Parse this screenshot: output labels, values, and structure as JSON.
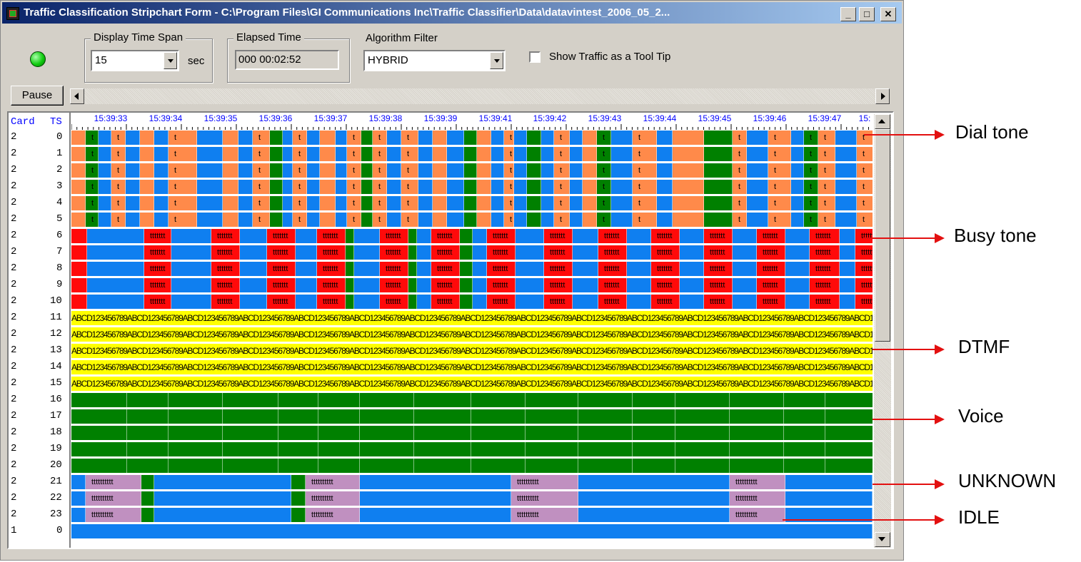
{
  "window": {
    "title": "Traffic Classification Stripchart Form - C:\\Program Files\\GI Communications Inc\\Traffic Classifier\\Data\\datavintest_2006_05_2...",
    "min_label": "_",
    "max_label": "□",
    "close_label": "✕"
  },
  "controls": {
    "status_led": "green-led-icon",
    "display_time_span": {
      "label": "Display Time Span",
      "value": "15",
      "unit": "sec"
    },
    "elapsed_time": {
      "label": "Elapsed Time",
      "value": "000 00:02:52"
    },
    "algorithm_filter": {
      "label": "Algorithm Filter",
      "value": "HYBRID"
    },
    "tooltip_checkbox": {
      "label": "Show Traffic as a Tool Tip",
      "checked": false
    },
    "pause_button": "Pause"
  },
  "grid": {
    "header_card": "Card",
    "header_ts": "TS",
    "time_labels": [
      "15:39:33",
      "15:39:34",
      "15:39:35",
      "15:39:36",
      "15:39:37",
      "15:39:38",
      "15:39:39",
      "15:39:41",
      "15:39:42",
      "15:39:43",
      "15:39:44",
      "15:39:45",
      "15:39:46",
      "15:39:47",
      "15:"
    ],
    "rows": [
      {
        "card": "2",
        "ts": "0",
        "type": "dial"
      },
      {
        "card": "2",
        "ts": "1",
        "type": "dial"
      },
      {
        "card": "2",
        "ts": "2",
        "type": "dial"
      },
      {
        "card": "2",
        "ts": "3",
        "type": "dial"
      },
      {
        "card": "2",
        "ts": "4",
        "type": "dial"
      },
      {
        "card": "2",
        "ts": "5",
        "type": "dial"
      },
      {
        "card": "2",
        "ts": "6",
        "type": "busy"
      },
      {
        "card": "2",
        "ts": "7",
        "type": "busy"
      },
      {
        "card": "2",
        "ts": "8",
        "type": "busy"
      },
      {
        "card": "2",
        "ts": "9",
        "type": "busy"
      },
      {
        "card": "2",
        "ts": "10",
        "type": "busy"
      },
      {
        "card": "2",
        "ts": "11",
        "type": "dtmf"
      },
      {
        "card": "2",
        "ts": "12",
        "type": "dtmf"
      },
      {
        "card": "2",
        "ts": "13",
        "type": "dtmf"
      },
      {
        "card": "2",
        "ts": "14",
        "type": "dtmf"
      },
      {
        "card": "2",
        "ts": "15",
        "type": "dtmf"
      },
      {
        "card": "2",
        "ts": "16",
        "type": "voice"
      },
      {
        "card": "2",
        "ts": "17",
        "type": "voice"
      },
      {
        "card": "2",
        "ts": "18",
        "type": "voice"
      },
      {
        "card": "2",
        "ts": "19",
        "type": "voice"
      },
      {
        "card": "2",
        "ts": "20",
        "type": "voice"
      },
      {
        "card": "2",
        "ts": "21",
        "type": "unknown"
      },
      {
        "card": "2",
        "ts": "22",
        "type": "unknown"
      },
      {
        "card": "2",
        "ts": "23",
        "type": "unknown"
      },
      {
        "card": "1",
        "ts": "0",
        "type": "idle"
      }
    ],
    "dtmf_text": "ABCD123456789ABCD123456789ABCD123456789ABCD123456789ABCD123456789ABCD123456789ABCD123456789ABCD123456789ABCD123456789ABCD123456789ABCD123456789ABCD123456789ABCD123456789ABCD123456789ABCD12345678",
    "dial_marks": "t",
    "busy_marks": "ttttttt",
    "unknown_marks": "tttttttttt"
  },
  "annotations": {
    "dial_tone": "Dial tone",
    "busy_tone": "Busy tone",
    "dtmf": "DTMF",
    "voice": "Voice",
    "unknown": "UNKNOWN",
    "idle": "IDLE"
  },
  "colors": {
    "idle": "#0f7ff0",
    "dial": "#ff8a4a",
    "voice": "#008000",
    "busy": "#ff0a0a",
    "dtmf": "#ffff00",
    "unknown": "#c090c0",
    "annotation_arrow": "#e31010"
  }
}
